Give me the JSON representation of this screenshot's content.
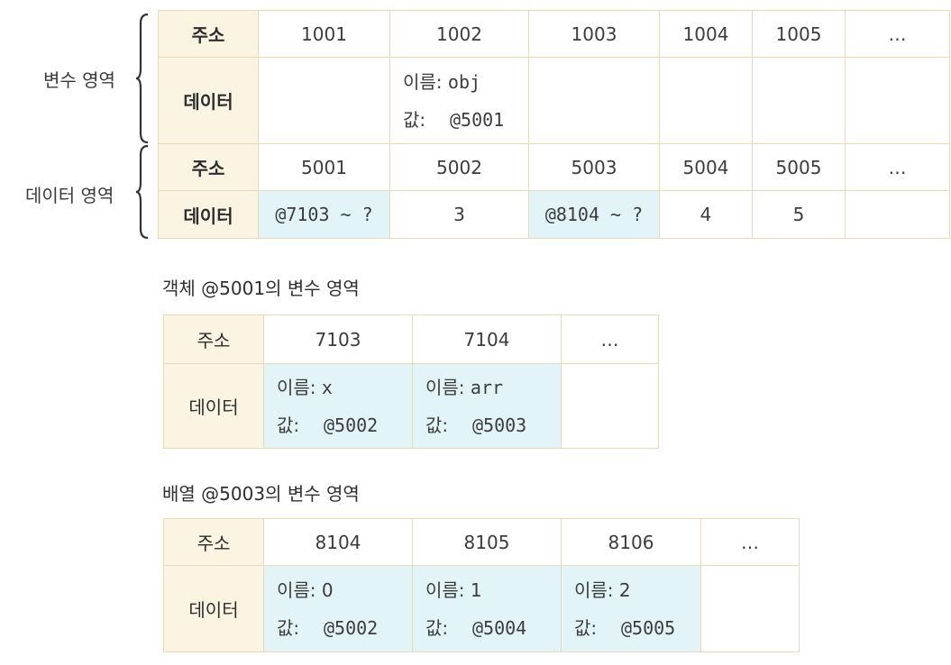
{
  "side_labels": {
    "variable_area": "변수 영역",
    "data_area": "데이터 영역"
  },
  "row_labels": {
    "address": "주소",
    "data": "데이터"
  },
  "cell_labels": {
    "name": "이름:",
    "value": "값:"
  },
  "variable_area": {
    "addresses": [
      "1001",
      "1002",
      "1003",
      "1004",
      "1005",
      "…"
    ],
    "slot_1002": {
      "name": "obj",
      "value": "@5001"
    }
  },
  "data_area": {
    "addresses": [
      "5001",
      "5002",
      "5003",
      "5004",
      "5005",
      "…"
    ],
    "data": [
      "@7103 ~ ?",
      "3",
      "@8104 ~ ?",
      "4",
      "5",
      ""
    ]
  },
  "object_section": {
    "title": "객체 @5001의 변수 영역",
    "addresses": [
      "7103",
      "7104",
      "…"
    ],
    "slots": [
      {
        "name": "x",
        "value": "@5002"
      },
      {
        "name": "arr",
        "value": "@5003"
      }
    ]
  },
  "array_section": {
    "title": "배열 @5003의 변수 영역",
    "addresses": [
      "8104",
      "8105",
      "8106",
      "…"
    ],
    "slots": [
      {
        "name": "0",
        "value": "@5002"
      },
      {
        "name": "1",
        "value": "@5004"
      },
      {
        "name": "2",
        "value": "@5005"
      }
    ]
  },
  "colors": {
    "header_bg": "#fbf4e3",
    "highlight_bg": "#e3f4f8",
    "border": "#e9d9b5"
  }
}
